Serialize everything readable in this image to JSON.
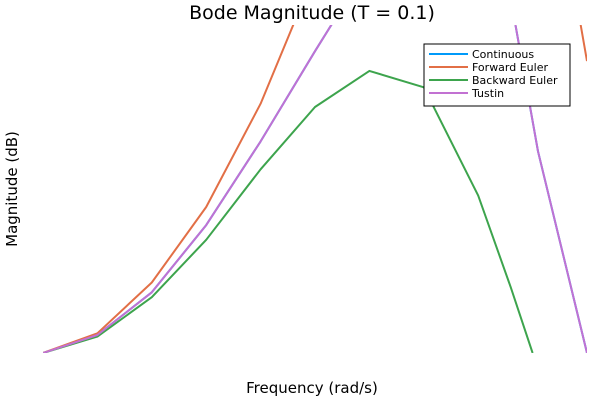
{
  "chart_data": {
    "type": "line",
    "title": "Bode Magnitude (T = 0.1)",
    "xlabel": "Frequency (rad/s)",
    "ylabel": "Magnitude (dB)",
    "xlim": [
      0,
      10
    ],
    "ylim": [
      0,
      100
    ],
    "grid": false,
    "legend_position": "top-right",
    "series": [
      {
        "name": "Continuous",
        "color": "#009af9",
        "x": [
          0,
          1,
          2,
          3,
          4,
          5,
          5.6,
          8.6,
          9.1,
          10
        ],
        "y": [
          0,
          5.5,
          18.5,
          39,
          64.5,
          92,
          108,
          108,
          61.5,
          0
        ]
      },
      {
        "name": "Forward Euler",
        "color": "#e26f46",
        "x": [
          0,
          1,
          2,
          3,
          4,
          4.8,
          9.8,
          10
        ],
        "y": [
          0,
          6,
          21.5,
          44.5,
          76,
          108,
          108,
          89
        ]
      },
      {
        "name": "Backward Euler",
        "color": "#3da44d",
        "x": [
          0,
          1,
          2,
          3,
          4,
          5,
          6,
          7,
          8,
          8.6,
          9
        ],
        "y": [
          0,
          5,
          17,
          34.5,
          56,
          75,
          86,
          81,
          48,
          20,
          0
        ]
      },
      {
        "name": "Tustin",
        "color": "#c271d2",
        "x": [
          0,
          1,
          2,
          3,
          4,
          5,
          5.6,
          8.6,
          9.1,
          10
        ],
        "y": [
          0,
          5.5,
          18.5,
          39,
          64.5,
          92,
          108,
          108,
          61.5,
          0
        ]
      }
    ]
  }
}
